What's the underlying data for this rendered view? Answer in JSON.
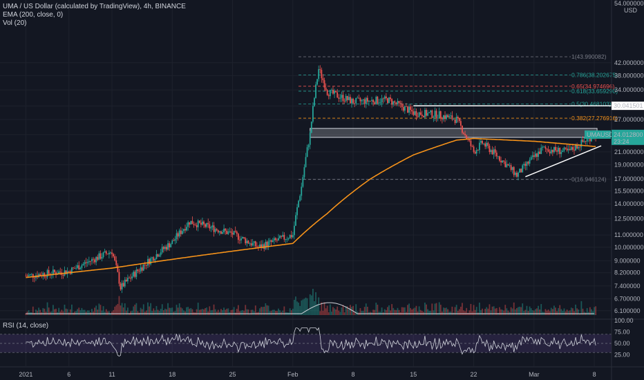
{
  "header": {
    "title_line": "UMA / US Dollar (calculated by TradingView), 4h, BINANCE",
    "ema_line": "EMA (200, close, 0)",
    "vol_line": "Vol (20)",
    "rsi_line": "RSI (14, close)",
    "currency": "USD",
    "price_scale_top": "54.000000"
  },
  "price_tag": {
    "symbol": "UMAUSD",
    "value": "24.012800",
    "countdown": "23:24",
    "color": "#26a69a"
  },
  "resistance_tag": {
    "value": "30.041501"
  },
  "colors": {
    "background": "#131722",
    "up_candle": "#26a69a",
    "down_candle": "#ef5350",
    "ema": "#f7931a",
    "rsi_line": "#d1d4dc",
    "rsi_band": "#7e57c2",
    "trendline": "#ffffff"
  },
  "chart_data": {
    "type": "candlestick",
    "symbol": "UMA / US Dollar",
    "timeframe": "4h",
    "exchange": "BINANCE",
    "price_axis_scale": "log",
    "price_ticks": [
      "42.000000",
      "38.000000",
      "34.000000",
      "30.000000",
      "27.000000",
      "24.000000",
      "21.000000",
      "19.000000",
      "17.000000",
      "15.500000",
      "14.000000",
      "12.500000",
      "11.000000",
      "10.000000",
      "9.000000",
      "8.200000",
      "7.400000",
      "6.700000",
      "6.100000"
    ],
    "x_ticks": [
      "2021",
      "6",
      "11",
      "18",
      "25",
      "Feb",
      "8",
      "15",
      "22",
      "Mar",
      "8"
    ],
    "fibonacci": [
      {
        "label": "1(43.990082)",
        "level": 1,
        "price": 43.990082,
        "color": "#787b86"
      },
      {
        "label": "0.786(38.202675)",
        "level": 0.786,
        "price": 38.202675,
        "color": "#26a69a"
      },
      {
        "label": "0.65(34.974696)",
        "level": 0.65,
        "price": 34.974696,
        "color": "#ef5350"
      },
      {
        "label": "0.618(33.659290)",
        "level": 0.618,
        "price": 33.65929,
        "color": "#26a69a"
      },
      {
        "label": "0.5(30.468103)",
        "level": 0.5,
        "price": 30.468103,
        "color": "#26a69a"
      },
      {
        "label": "0.382(27.276916)",
        "level": 0.382,
        "price": 27.276916,
        "color": "#f7931a"
      },
      {
        "label": "0(16.946124)",
        "level": 0,
        "price": 16.946124,
        "color": "#787b86"
      }
    ],
    "ohlc_key_points": [
      {
        "x": "2021-01-01",
        "close": 8.0
      },
      {
        "x": "2021-01-06",
        "close": 8.3
      },
      {
        "x": "2021-01-11",
        "close": 9.7
      },
      {
        "x": "2021-01-12",
        "close": 7.3
      },
      {
        "x": "2021-01-18",
        "close": 10.4
      },
      {
        "x": "2021-01-20",
        "close": 12.2
      },
      {
        "x": "2021-01-25",
        "close": 11.1
      },
      {
        "x": "2021-01-28",
        "close": 10.0
      },
      {
        "x": "2021-02-01",
        "close": 11.0
      },
      {
        "x": "2021-02-02",
        "close": 16.0
      },
      {
        "x": "2021-02-03",
        "close": 24.0
      },
      {
        "x": "2021-02-04",
        "close": 40.0
      },
      {
        "x": "2021-02-05",
        "close": 33.5
      },
      {
        "x": "2021-02-08",
        "close": 31.0
      },
      {
        "x": "2021-02-12",
        "close": 31.5
      },
      {
        "x": "2021-02-15",
        "close": 28.5
      },
      {
        "x": "2021-02-18",
        "close": 28.0
      },
      {
        "x": "2021-02-20",
        "close": 27.0
      },
      {
        "x": "2021-02-22",
        "close": 21.0
      },
      {
        "x": "2021-02-23",
        "close": 22.5
      },
      {
        "x": "2021-02-25",
        "close": 20.0
      },
      {
        "x": "2021-02-27",
        "close": 17.5
      },
      {
        "x": "2021-03-02",
        "close": 21.5
      },
      {
        "x": "2021-03-05",
        "close": 21.0
      },
      {
        "x": "2021-03-08",
        "close": 24.01
      }
    ],
    "ema200_key_points": [
      {
        "x": "2021-01-01",
        "value": 7.9
      },
      {
        "x": "2021-01-11",
        "value": 8.5
      },
      {
        "x": "2021-01-18",
        "value": 9.1
      },
      {
        "x": "2021-01-25",
        "value": 9.7
      },
      {
        "x": "2021-02-01",
        "value": 10.3
      },
      {
        "x": "2021-02-05",
        "value": 13.0
      },
      {
        "x": "2021-02-10",
        "value": 17.0
      },
      {
        "x": "2021-02-15",
        "value": 20.5
      },
      {
        "x": "2021-02-20",
        "value": 23.0
      },
      {
        "x": "2021-02-22",
        "value": 23.3
      },
      {
        "x": "2021-03-01",
        "value": 22.8
      },
      {
        "x": "2021-03-08",
        "value": 21.9
      }
    ],
    "annotations": {
      "resistance_line": {
        "price": 30.041501,
        "from": "2021-02-15",
        "to": "right-edge"
      },
      "support_zone": {
        "low": 23.5,
        "high": 25.2,
        "from": "2021-02-03",
        "to": "2021-03-08"
      },
      "ascending_trendline": {
        "start": {
          "x": "2021-02-28",
          "price": 17.3
        },
        "end": {
          "x": "2021-03-08",
          "price": 21.3
        }
      }
    },
    "rsi": {
      "period": 14,
      "upper": 70,
      "lower": 30,
      "ticks": [
        "100.00",
        "75.00",
        "50.00",
        "25.00"
      ]
    }
  }
}
